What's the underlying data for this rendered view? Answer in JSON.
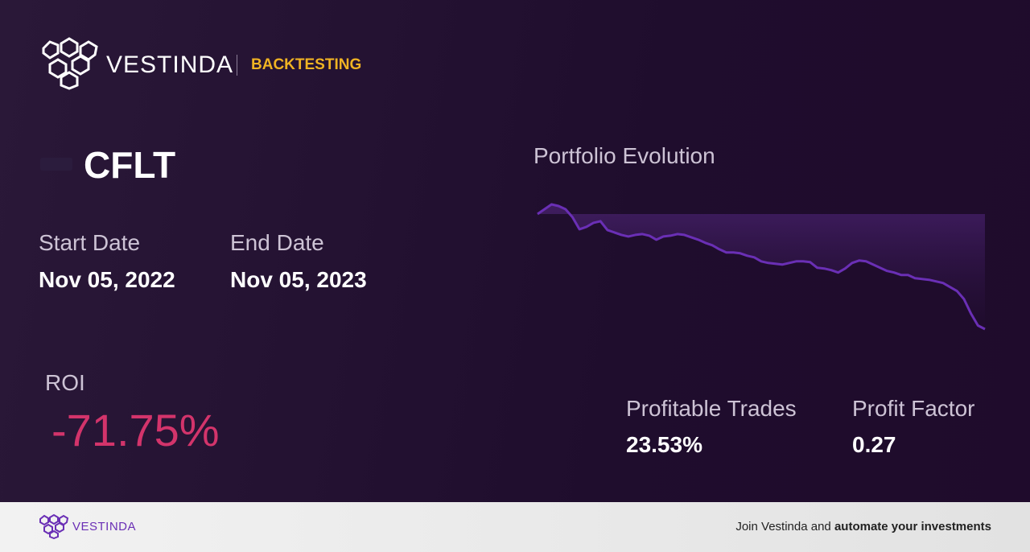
{
  "header": {
    "brand": "VESTINDA",
    "section": "BACKTESTING"
  },
  "ticker": "CFLT",
  "start_date": {
    "label": "Start Date",
    "value": "Nov 05, 2022"
  },
  "end_date": {
    "label": "End Date",
    "value": "Nov 05, 2023"
  },
  "roi": {
    "label": "ROI",
    "value": "-71.75%"
  },
  "profitable_trades": {
    "label": "Profitable Trades",
    "value": "23.53%"
  },
  "profit_factor": {
    "label": "Profit Factor",
    "value": "0.27"
  },
  "chart_data": {
    "type": "line",
    "title": "Portfolio Evolution",
    "color": "#6a2fb5",
    "values": [
      100,
      103,
      106,
      105,
      103,
      98,
      90.5,
      92,
      94.5,
      95.5,
      90,
      88.5,
      87,
      86,
      87,
      87.5,
      86.5,
      84,
      86,
      86.5,
      87.5,
      87,
      85.5,
      84,
      82,
      80.5,
      78,
      76,
      76,
      75.5,
      74,
      73,
      70.5,
      69.5,
      69,
      68.5,
      69.5,
      70.5,
      70.5,
      70,
      66.5,
      66,
      65,
      63.5,
      66,
      69.5,
      71,
      70.5,
      68.5,
      66.5,
      64.5,
      63.5,
      62,
      62,
      60,
      59.5,
      59,
      58,
      57,
      54.5,
      52,
      47,
      38,
      30.5,
      28.25
    ]
  },
  "footer": {
    "brand": "VESTINDA",
    "cta_prefix": "Join Vestinda and ",
    "cta_bold": "automate your investments"
  }
}
